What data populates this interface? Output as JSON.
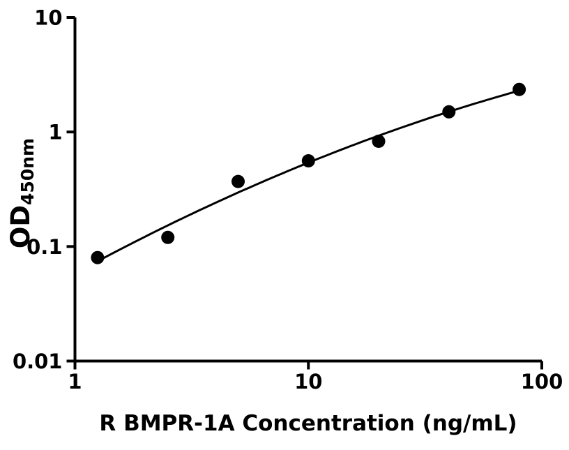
{
  "chart_data": {
    "type": "scatter",
    "xlabel": "R BMPR-1A Concentration (ng/mL)",
    "ylabel": "OD",
    "ylabel_subscript": "450nm",
    "x_scale": "log",
    "y_scale": "log",
    "xlim": [
      1,
      100
    ],
    "ylim": [
      0.01,
      10
    ],
    "x_ticks": [
      {
        "value": 1,
        "label": "1"
      },
      {
        "value": 10,
        "label": "10"
      },
      {
        "value": 100,
        "label": "100"
      }
    ],
    "y_ticks": [
      {
        "value": 0.01,
        "label": "0.01"
      },
      {
        "value": 0.1,
        "label": "0.1"
      },
      {
        "value": 1,
        "label": "1"
      },
      {
        "value": 10,
        "label": "10"
      }
    ],
    "x": [
      1.25,
      2.5,
      5,
      10,
      20,
      40,
      80
    ],
    "y": [
      0.08,
      0.12,
      0.37,
      0.56,
      0.83,
      1.5,
      2.35
    ],
    "fit": "quadratic-loglog",
    "grid": false,
    "legend": "none",
    "marker_color": "#000000",
    "line_color": "#000000",
    "axis_color": "#000000",
    "background": "#ffffff"
  }
}
